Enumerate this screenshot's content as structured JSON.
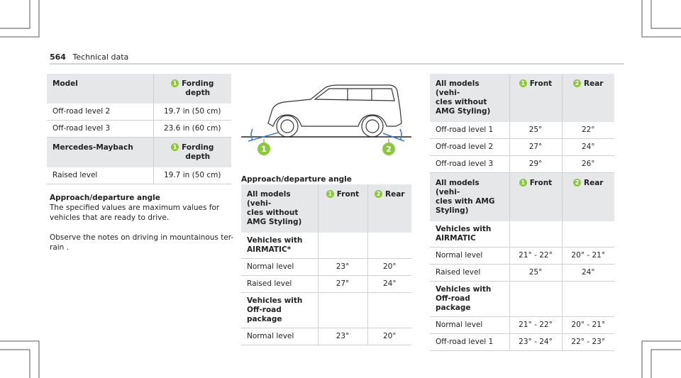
{
  "header": {
    "page": "564",
    "section": "Technical data"
  },
  "fording_table": {
    "sections": [
      {
        "heading": {
          "label": "Model",
          "columns": [
            {
              "badge": "1",
              "text": "Fording\ndepth"
            }
          ]
        },
        "groups": [
          {
            "rows": [
              [
                "Off-road level 2",
                "19.7 in (50 cm)"
              ],
              [
                "Off-road level 3",
                "23.6 in (60 cm)"
              ]
            ]
          }
        ]
      },
      {
        "heading": {
          "label": "Mercedes-Maybach",
          "columns": [
            {
              "badge": "1",
              "text": "Fording\ndepth"
            }
          ]
        },
        "groups": [
          {
            "rows": [
              [
                "Raised level",
                "19.7 in (50 cm)"
              ]
            ]
          }
        ]
      }
    ]
  },
  "text": {
    "heading": "Approach/departure angle",
    "paragraphs": [
      [
        "The specified values are maximum values for",
        "vehicles that are ready to drive."
      ],
      [
        "Observe the notes on driving in mountainous ter-",
        "rain ."
      ]
    ]
  },
  "figure": {
    "callouts": [
      "1",
      "2"
    ],
    "caption": "Approach/departure angle"
  },
  "angle_table_1": {
    "sections": [
      {
        "heading": {
          "label": "All models (vehi-\ncles without\nAMG Styling)",
          "columns": [
            {
              "badge": "1",
              "text": "Front"
            },
            {
              "badge": "2",
              "text": "Rear"
            }
          ]
        },
        "groups": [
          {
            "title": "Vehicles with\nAIRMATIC*",
            "rows": [
              [
                "Normal level",
                "23°",
                "20°"
              ],
              [
                "Raised level",
                "27°",
                "24°"
              ]
            ]
          },
          {
            "title": "Vehicles with\nOff-road package",
            "rows": [
              [
                "Normal level",
                "23°",
                "20°"
              ]
            ]
          }
        ]
      }
    ]
  },
  "angle_table_2": {
    "sections": [
      {
        "heading": {
          "label": "All models (vehi-\ncles without\nAMG Styling)",
          "columns": [
            {
              "badge": "1",
              "text": "Front"
            },
            {
              "badge": "2",
              "text": "Rear"
            }
          ]
        },
        "groups": [
          {
            "rows": [
              [
                "Off-road level 1",
                "25°",
                "22°"
              ],
              [
                "Off-road level 2",
                "27°",
                "24°"
              ],
              [
                "Off-road level 3",
                "29°",
                "26°"
              ]
            ]
          }
        ]
      },
      {
        "heading": {
          "label": "All models (vehi-\ncles with AMG\nStyling)",
          "columns": [
            {
              "badge": "1",
              "text": "Front"
            },
            {
              "badge": "2",
              "text": "Rear"
            }
          ]
        },
        "groups": [
          {
            "title": "Vehicles with\nAIRMATIC",
            "rows": [
              [
                "Normal level",
                "21° - 22°",
                "20° - 21°"
              ],
              [
                "Raised level",
                "25°",
                "24°"
              ]
            ]
          },
          {
            "title": "Vehicles with\nOff-road package",
            "rows": [
              [
                "Normal level",
                "21° - 22°",
                "20° - 21°"
              ],
              [
                "Off-road level 1",
                "23° - 24°",
                "22° - 23°"
              ]
            ]
          }
        ]
      }
    ]
  }
}
